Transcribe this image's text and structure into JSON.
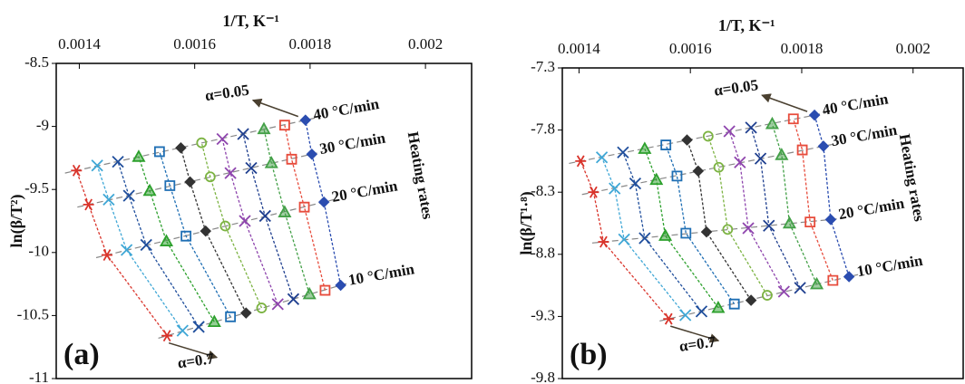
{
  "chart_data": [
    {
      "type": "scatter",
      "panel_label": "(a)",
      "xlabel": "1/T, K⁻¹",
      "ylabel": "ln(β/T²)",
      "xlim": [
        0.00136,
        0.00208
      ],
      "xticks": [
        0.0014,
        0.0016,
        0.0018,
        0.002
      ],
      "ylim": [
        -11,
        -8.5
      ],
      "yticks": [
        -8.5,
        -9,
        -9.5,
        -10,
        -10.5,
        -11
      ],
      "alpha_first": "α=0.05",
      "alpha_last": "α=0.7",
      "rate_labels": [
        "10 °C/min",
        "20 °C/min",
        "30 °C/min",
        "40 °C/min"
      ],
      "side_label": "Heating rates",
      "series": [
        {
          "color": "#d9342b",
          "marker": "star",
          "x": [
            0.001552,
            0.001448,
            0.001416,
            0.001395
          ],
          "values": [
            -10.66,
            -10.02,
            -9.62,
            -9.35
          ]
        },
        {
          "color": "#3fa7d6",
          "marker": "x",
          "x": [
            0.001579,
            0.001482,
            0.001451,
            0.001431
          ],
          "values": [
            -10.62,
            -9.98,
            -9.58,
            -9.31
          ]
        },
        {
          "color": "#1f4e9c",
          "marker": "x",
          "x": [
            0.001607,
            0.001516,
            0.001486,
            0.001467
          ],
          "values": [
            -10.59,
            -9.94,
            -9.55,
            -9.28
          ]
        },
        {
          "color": "#2ca02c",
          "marker": "triangle",
          "x": [
            0.001634,
            0.001551,
            0.001522,
            0.001503
          ],
          "values": [
            -10.55,
            -9.91,
            -9.51,
            -9.24
          ]
        },
        {
          "color": "#1f6fb4",
          "marker": "square",
          "x": [
            0.001662,
            0.001585,
            0.001557,
            0.001539
          ],
          "values": [
            -10.51,
            -9.87,
            -9.47,
            -9.2
          ]
        },
        {
          "color": "#333333",
          "marker": "diamond",
          "x": [
            0.001689,
            0.001619,
            0.001592,
            0.001576
          ],
          "values": [
            -10.48,
            -9.83,
            -9.44,
            -9.17
          ]
        },
        {
          "color": "#7cb342",
          "marker": "circle",
          "x": [
            0.001716,
            0.001653,
            0.001627,
            0.001612
          ],
          "values": [
            -10.44,
            -9.79,
            -9.4,
            -9.13
          ]
        },
        {
          "color": "#8e44ad",
          "marker": "x",
          "x": [
            0.001744,
            0.001687,
            0.001662,
            0.001648
          ],
          "values": [
            -10.41,
            -9.75,
            -9.37,
            -9.1
          ]
        },
        {
          "color": "#1f3f8f",
          "marker": "x",
          "x": [
            0.001771,
            0.001722,
            0.001698,
            0.001684
          ],
          "values": [
            -10.37,
            -9.71,
            -9.33,
            -9.06
          ]
        },
        {
          "color": "#43a047",
          "marker": "triangle",
          "x": [
            0.001799,
            0.001756,
            0.001733,
            0.00172
          ],
          "values": [
            -10.33,
            -9.68,
            -9.29,
            -9.02
          ]
        },
        {
          "color": "#e74c3c",
          "marker": "square",
          "x": [
            0.001826,
            0.00179,
            0.001768,
            0.001756
          ],
          "values": [
            -10.3,
            -9.64,
            -9.26,
            -8.99
          ]
        },
        {
          "color": "#2b4db0",
          "marker": "diamond",
          "x": [
            0.001853,
            0.001824,
            0.001803,
            0.001792
          ],
          "values": [
            -10.26,
            -9.6,
            -9.22,
            -8.95
          ]
        }
      ]
    },
    {
      "type": "scatter",
      "panel_label": "(b)",
      "xlabel": "1/T, K⁻¹",
      "ylabel": "ln(β/T¹·⁸)",
      "xlim": [
        0.00137,
        0.00209
      ],
      "xticks": [
        0.0014,
        0.0016,
        0.0018,
        0.002
      ],
      "ylim": [
        -9.8,
        -7.3
      ],
      "yticks": [
        -7.3,
        -7.8,
        -8.3,
        -8.8,
        -9.3,
        -9.8
      ],
      "alpha_first": "α=0.05",
      "alpha_last": "α=0.7",
      "rate_labels": [
        "10 °C/min",
        "20 °C/min",
        "30 °C/min",
        "40 °C/min"
      ],
      "side_label": "Heating rates",
      "series": [
        {
          "color": "#d9342b",
          "marker": "star",
          "x": [
            0.001561,
            0.001444,
            0.001426,
            0.001403
          ],
          "values": [
            -9.32,
            -8.7,
            -8.3,
            -8.05
          ]
        },
        {
          "color": "#3fa7d6",
          "marker": "x",
          "x": [
            0.001591,
            0.001481,
            0.001464,
            0.001441
          ],
          "values": [
            -9.29,
            -8.68,
            -8.27,
            -8.02
          ]
        },
        {
          "color": "#1f4e9c",
          "marker": "x",
          "x": [
            0.00162,
            0.001518,
            0.001501,
            0.001479
          ],
          "values": [
            -9.26,
            -8.67,
            -8.23,
            -7.98
          ]
        },
        {
          "color": "#2ca02c",
          "marker": "triangle",
          "x": [
            0.00165,
            0.001555,
            0.001539,
            0.001518
          ],
          "values": [
            -9.23,
            -8.65,
            -8.2,
            -7.95
          ]
        },
        {
          "color": "#1f6fb4",
          "marker": "square",
          "x": [
            0.001679,
            0.001592,
            0.001576,
            0.001556
          ],
          "values": [
            -9.2,
            -8.63,
            -8.17,
            -7.92
          ]
        },
        {
          "color": "#333333",
          "marker": "diamond",
          "x": [
            0.001709,
            0.001629,
            0.001614,
            0.001594
          ],
          "values": [
            -9.17,
            -8.62,
            -8.13,
            -7.88
          ]
        },
        {
          "color": "#7cb342",
          "marker": "circle",
          "x": [
            0.001738,
            0.001667,
            0.001651,
            0.001632
          ],
          "values": [
            -9.13,
            -8.6,
            -8.1,
            -7.85
          ]
        },
        {
          "color": "#8e44ad",
          "marker": "x",
          "x": [
            0.001768,
            0.001704,
            0.001689,
            0.00167
          ],
          "values": [
            -9.1,
            -8.59,
            -8.06,
            -7.81
          ]
        },
        {
          "color": "#1f3f8f",
          "marker": "x",
          "x": [
            0.001797,
            0.001741,
            0.001726,
            0.001709
          ],
          "values": [
            -9.07,
            -8.57,
            -8.03,
            -7.78
          ]
        },
        {
          "color": "#43a047",
          "marker": "triangle",
          "x": [
            0.001827,
            0.001778,
            0.001764,
            0.001747
          ],
          "values": [
            -9.04,
            -8.55,
            -8.0,
            -7.75
          ]
        },
        {
          "color": "#e74c3c",
          "marker": "square",
          "x": [
            0.001856,
            0.001815,
            0.001801,
            0.001785
          ],
          "values": [
            -9.01,
            -8.54,
            -7.96,
            -7.71
          ]
        },
        {
          "color": "#2b4db0",
          "marker": "diamond",
          "x": [
            0.001885,
            0.001852,
            0.001839,
            0.001823
          ],
          "values": [
            -8.98,
            -8.52,
            -7.93,
            -7.68
          ]
        }
      ]
    }
  ]
}
